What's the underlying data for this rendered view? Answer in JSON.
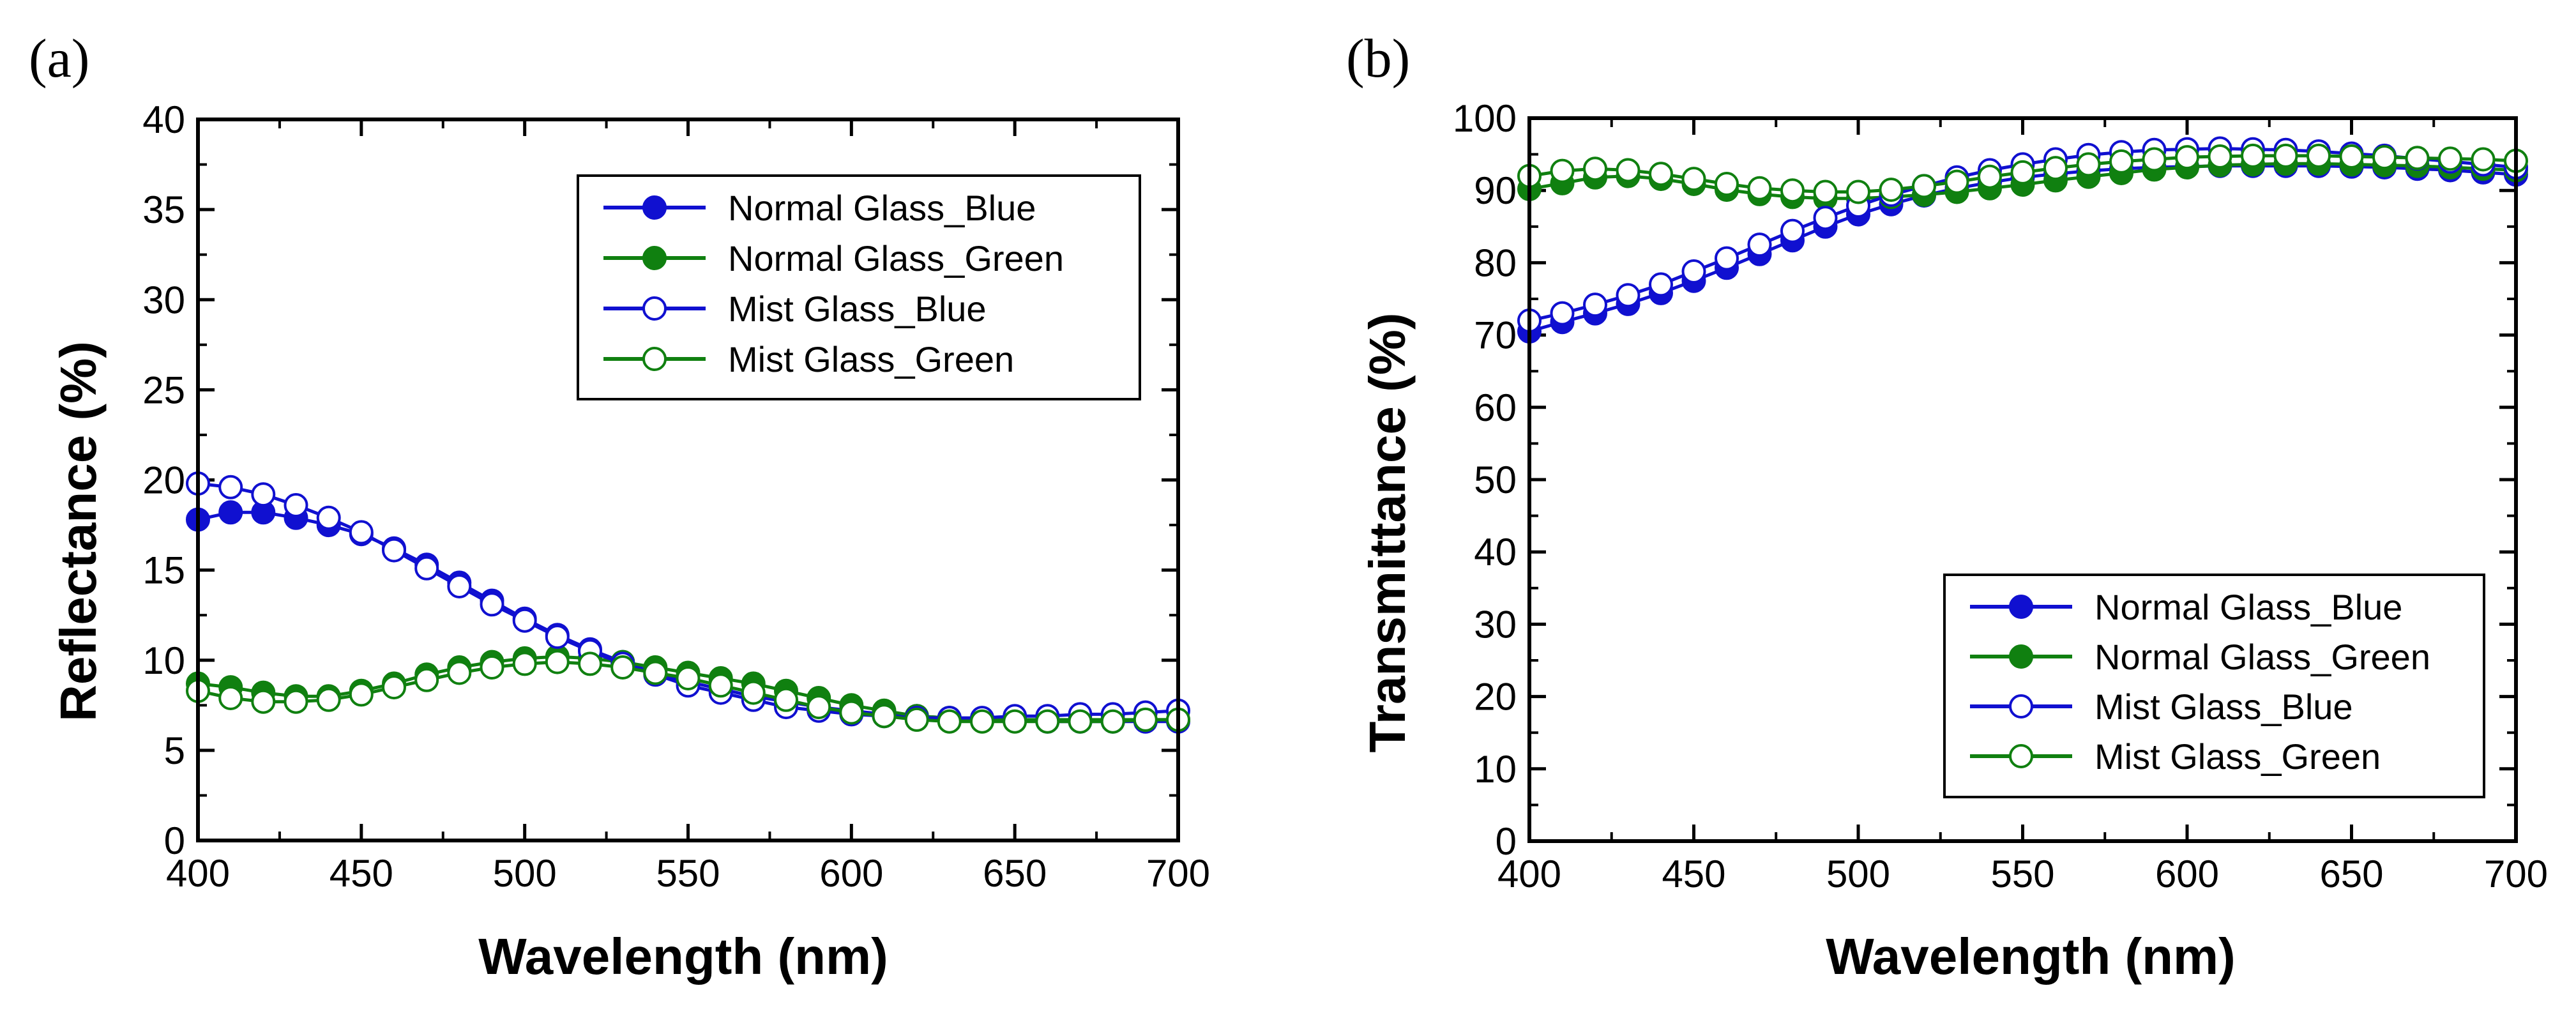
{
  "figure": {
    "panel_labels": [
      "(a)",
      "(b)"
    ]
  },
  "colors": {
    "blue": "#1010d0",
    "green": "#108010"
  },
  "chart_data": [
    {
      "type": "scatter",
      "panel": "(a)",
      "xlabel": "Wavelength (nm)",
      "ylabel": "Reflectance (%)",
      "xlim": [
        400,
        700
      ],
      "ylim": [
        0,
        40
      ],
      "xticks": [
        400,
        450,
        500,
        550,
        600,
        650,
        700
      ],
      "yticks": [
        0,
        5,
        10,
        15,
        20,
        25,
        30,
        35,
        40
      ],
      "legend_position": "top-right",
      "series": [
        {
          "name": "Normal Glass_Blue",
          "color": "#1010d0",
          "marker": "filled-circle",
          "x": [
            400,
            410,
            420,
            430,
            440,
            450,
            460,
            470,
            480,
            490,
            500,
            510,
            520,
            530,
            540,
            550,
            560,
            570,
            580,
            590,
            600,
            610,
            620,
            630,
            640,
            650,
            660,
            670,
            680,
            690,
            700
          ],
          "values": [
            17.8,
            18.2,
            18.2,
            17.9,
            17.5,
            17.0,
            16.2,
            15.3,
            14.3,
            13.3,
            12.3,
            11.4,
            10.6,
            9.9,
            9.3,
            8.8,
            8.4,
            8.0,
            7.7,
            7.4,
            7.2,
            7.0,
            6.9,
            6.8,
            6.7,
            6.7,
            6.6,
            6.6,
            6.6,
            6.6,
            6.6
          ]
        },
        {
          "name": "Normal Glass_Green",
          "color": "#108010",
          "marker": "filled-circle",
          "x": [
            400,
            410,
            420,
            430,
            440,
            450,
            460,
            470,
            480,
            490,
            500,
            510,
            520,
            530,
            540,
            550,
            560,
            570,
            580,
            590,
            600,
            610,
            620,
            630,
            640,
            650,
            660,
            670,
            680,
            690,
            700
          ],
          "values": [
            8.7,
            8.5,
            8.2,
            8.0,
            8.0,
            8.3,
            8.7,
            9.2,
            9.6,
            9.9,
            10.1,
            10.2,
            10.1,
            9.9,
            9.6,
            9.3,
            9.0,
            8.7,
            8.3,
            7.9,
            7.5,
            7.2,
            6.9,
            6.8,
            6.7,
            6.7,
            6.7,
            6.7,
            6.7,
            6.7,
            6.7
          ]
        },
        {
          "name": "Mist Glass_Blue",
          "color": "#1010d0",
          "marker": "open-circle",
          "x": [
            400,
            410,
            420,
            430,
            440,
            450,
            460,
            470,
            480,
            490,
            500,
            510,
            520,
            530,
            540,
            550,
            560,
            570,
            580,
            590,
            600,
            610,
            620,
            630,
            640,
            650,
            660,
            670,
            680,
            690,
            700
          ],
          "values": [
            19.8,
            19.6,
            19.2,
            18.6,
            17.9,
            17.1,
            16.1,
            15.1,
            14.1,
            13.1,
            12.2,
            11.3,
            10.5,
            9.8,
            9.2,
            8.6,
            8.2,
            7.8,
            7.4,
            7.2,
            7.0,
            6.9,
            6.8,
            6.8,
            6.8,
            6.9,
            6.9,
            7.0,
            7.0,
            7.1,
            7.2
          ]
        },
        {
          "name": "Mist Glass_Green",
          "color": "#108010",
          "marker": "open-circle",
          "x": [
            400,
            410,
            420,
            430,
            440,
            450,
            460,
            470,
            480,
            490,
            500,
            510,
            520,
            530,
            540,
            550,
            560,
            570,
            580,
            590,
            600,
            610,
            620,
            630,
            640,
            650,
            660,
            670,
            680,
            690,
            700
          ],
          "values": [
            8.3,
            7.9,
            7.7,
            7.7,
            7.8,
            8.1,
            8.5,
            8.9,
            9.3,
            9.6,
            9.8,
            9.9,
            9.8,
            9.6,
            9.3,
            9.0,
            8.6,
            8.2,
            7.8,
            7.4,
            7.1,
            6.9,
            6.7,
            6.6,
            6.6,
            6.6,
            6.6,
            6.6,
            6.6,
            6.7,
            6.7
          ]
        }
      ]
    },
    {
      "type": "scatter",
      "panel": "(b)",
      "xlabel": "Wavelength (nm)",
      "ylabel": "Transmittance (%)",
      "xlim": [
        400,
        700
      ],
      "ylim": [
        0,
        100
      ],
      "xticks": [
        400,
        450,
        500,
        550,
        600,
        650,
        700
      ],
      "yticks": [
        0,
        10,
        20,
        30,
        40,
        50,
        60,
        70,
        80,
        90,
        100
      ],
      "legend_position": "bottom-right",
      "series": [
        {
          "name": "Normal Glass_Blue",
          "color": "#1010d0",
          "marker": "filled-circle",
          "x": [
            400,
            410,
            420,
            430,
            440,
            450,
            460,
            470,
            480,
            490,
            500,
            510,
            520,
            530,
            540,
            550,
            560,
            570,
            580,
            590,
            600,
            610,
            620,
            630,
            640,
            650,
            660,
            670,
            680,
            690,
            700
          ],
          "values": [
            70.5,
            71.8,
            73.0,
            74.3,
            75.8,
            77.5,
            79.3,
            81.2,
            83.1,
            85.0,
            86.7,
            88.1,
            89.3,
            90.3,
            91.1,
            91.8,
            92.3,
            92.7,
            93.0,
            93.2,
            93.3,
            93.4,
            93.4,
            93.4,
            93.4,
            93.3,
            93.2,
            93.0,
            92.8,
            92.5,
            92.2
          ]
        },
        {
          "name": "Normal Glass_Green",
          "color": "#108010",
          "marker": "filled-circle",
          "x": [
            400,
            410,
            420,
            430,
            440,
            450,
            460,
            470,
            480,
            490,
            500,
            510,
            520,
            530,
            540,
            550,
            560,
            570,
            580,
            590,
            600,
            610,
            620,
            630,
            640,
            650,
            660,
            670,
            680,
            690,
            700
          ],
          "values": [
            90.2,
            91.0,
            91.8,
            92.0,
            91.6,
            90.9,
            90.1,
            89.5,
            89.1,
            88.9,
            88.9,
            89.1,
            89.4,
            89.8,
            90.3,
            90.8,
            91.4,
            91.9,
            92.4,
            92.9,
            93.2,
            93.5,
            93.6,
            93.7,
            93.7,
            93.6,
            93.5,
            93.4,
            93.2,
            93.0,
            92.8
          ]
        },
        {
          "name": "Mist Glass_Blue",
          "color": "#1010d0",
          "marker": "open-circle",
          "x": [
            400,
            410,
            420,
            430,
            440,
            450,
            460,
            470,
            480,
            490,
            500,
            510,
            520,
            530,
            540,
            550,
            560,
            570,
            580,
            590,
            600,
            610,
            620,
            630,
            640,
            650,
            660,
            670,
            680,
            690,
            700
          ],
          "values": [
            72.0,
            73.0,
            74.2,
            75.5,
            77.0,
            78.8,
            80.6,
            82.5,
            84.4,
            86.2,
            87.9,
            89.4,
            90.6,
            91.8,
            92.8,
            93.6,
            94.3,
            94.9,
            95.3,
            95.6,
            95.7,
            95.8,
            95.7,
            95.6,
            95.4,
            95.1,
            94.8,
            94.4,
            94.0,
            93.6,
            93.2
          ]
        },
        {
          "name": "Mist Glass_Green",
          "color": "#108010",
          "marker": "open-circle",
          "x": [
            400,
            410,
            420,
            430,
            440,
            450,
            460,
            470,
            480,
            490,
            500,
            510,
            520,
            530,
            540,
            550,
            560,
            570,
            580,
            590,
            600,
            610,
            620,
            630,
            640,
            650,
            660,
            670,
            680,
            690,
            700
          ],
          "values": [
            92.0,
            92.7,
            93.0,
            92.8,
            92.3,
            91.6,
            90.9,
            90.3,
            90.0,
            89.8,
            89.8,
            90.1,
            90.6,
            91.2,
            91.9,
            92.5,
            93.1,
            93.6,
            94.0,
            94.3,
            94.6,
            94.7,
            94.8,
            94.8,
            94.8,
            94.7,
            94.6,
            94.5,
            94.4,
            94.3,
            94.1
          ]
        }
      ]
    }
  ]
}
